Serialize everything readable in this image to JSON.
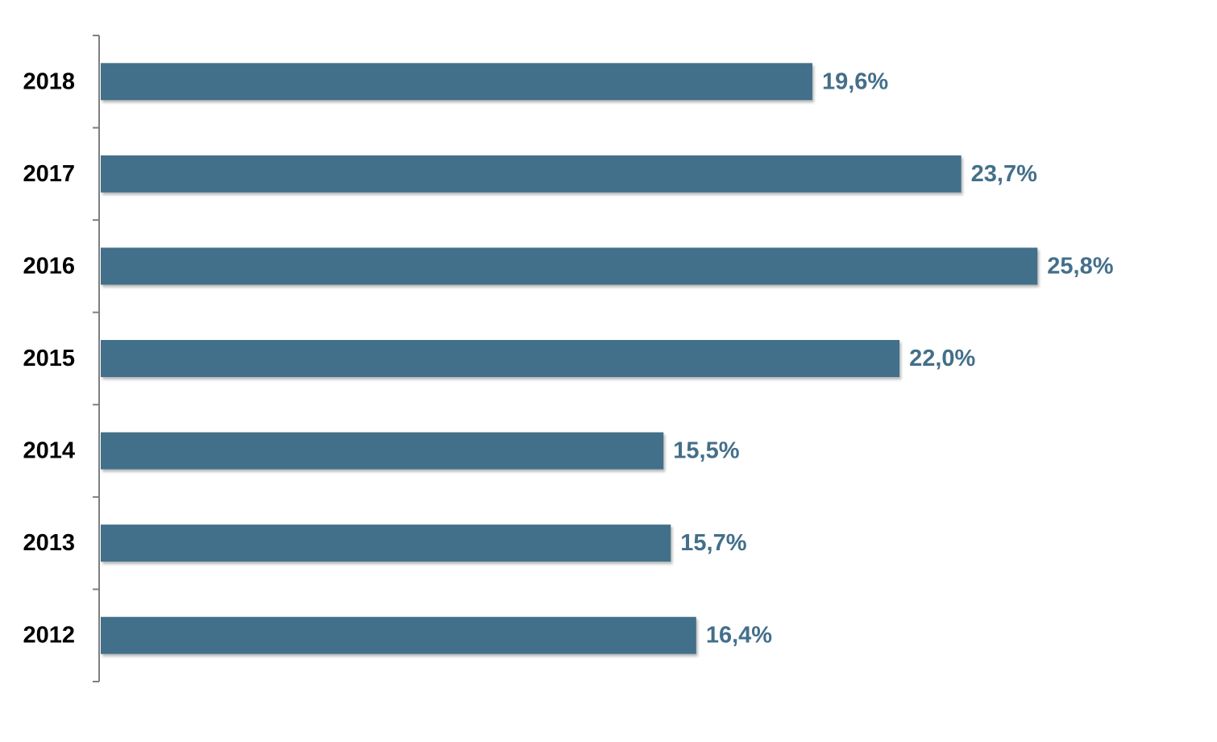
{
  "chart_data": {
    "type": "bar",
    "orientation": "horizontal",
    "categories": [
      "2018",
      "2017",
      "2016",
      "2015",
      "2014",
      "2013",
      "2012"
    ],
    "values": [
      19.6,
      23.7,
      25.8,
      22.0,
      15.5,
      15.7,
      16.4
    ],
    "value_labels": [
      "19,6%",
      "23,7%",
      "25,8%",
      "22,0%",
      "15,5%",
      "15,7%",
      "16,4%"
    ],
    "title": "",
    "xlabel": "",
    "ylabel": "",
    "xlim": [
      0,
      30
    ],
    "grid": false,
    "legend": "none",
    "colors": {
      "bar": "#436f8a",
      "value_label": "#436f8a",
      "category_label": "#000000",
      "axis": "#7f7f7f"
    }
  }
}
